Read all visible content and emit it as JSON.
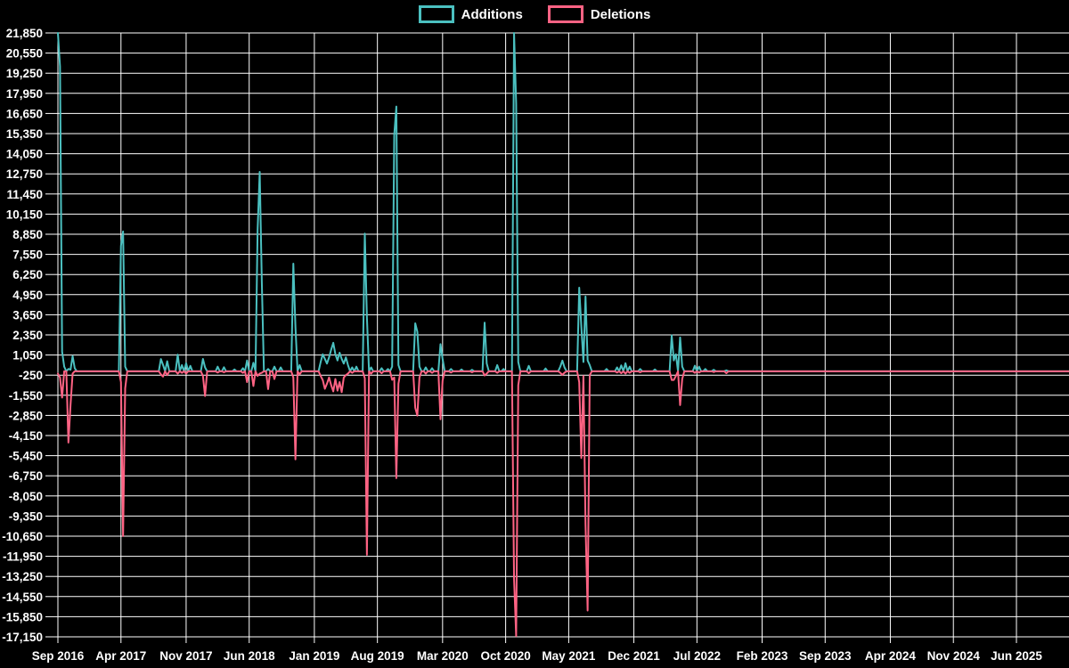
{
  "legend": {
    "items": [
      {
        "label": "Additions",
        "color": "#4BC0C0"
      },
      {
        "label": "Deletions",
        "color": "#FF6384"
      }
    ]
  },
  "chart_data": {
    "type": "line",
    "title": "",
    "xlabel": "",
    "ylabel": "",
    "background_color": "#000000",
    "grid": true,
    "grid_color": "#ffffff",
    "text_color": "#ffffff",
    "legend_position": "top",
    "y_axis": {
      "min": -17150,
      "max": 21850,
      "tick_step": 1300
    },
    "y_tick_labels": [
      "21,850",
      "20,550",
      "19,250",
      "17,950",
      "16,650",
      "15,350",
      "14,050",
      "12,750",
      "11,450",
      "10,150",
      "8,850",
      "7,550",
      "6,250",
      "4,950",
      "3,650",
      "2,350",
      "1,050",
      "-250",
      "-1,550",
      "-2,850",
      "-4,150",
      "-5,450",
      "-6,750",
      "-8,050",
      "-9,350",
      "-10,650",
      "-11,950",
      "-13,250",
      "-14,550",
      "-15,850",
      "-17,150"
    ],
    "x_tick_labels": [
      "Sep 2016",
      "Apr 2017",
      "Nov 2017",
      "Jun 2018",
      "Jan 2019",
      "Aug 2019",
      "Mar 2020",
      "Oct 2020",
      "May 2021",
      "Dec 2021",
      "Jul 2022",
      "Feb 2023",
      "Sep 2023",
      "Apr 2024",
      "Nov 2024",
      "Jun 2025"
    ],
    "x_tick_week_interval": 30.43,
    "weeks_total": 482,
    "series": [
      {
        "name": "Additions",
        "color": "#4BC0C0",
        "default_value": 0,
        "points": [
          {
            "i": 0,
            "v": 21850
          },
          {
            "i": 1,
            "v": 19700
          },
          {
            "i": 2,
            "v": 1265
          },
          {
            "i": 3,
            "v": 300
          },
          {
            "i": 5,
            "v": 150
          },
          {
            "i": 6,
            "v": 100
          },
          {
            "i": 7,
            "v": 980
          },
          {
            "i": 8,
            "v": 200
          },
          {
            "i": 30,
            "v": 8100
          },
          {
            "i": 31,
            "v": 9030
          },
          {
            "i": 32,
            "v": 300
          },
          {
            "i": 49,
            "v": 790
          },
          {
            "i": 50,
            "v": 420
          },
          {
            "i": 52,
            "v": 650
          },
          {
            "i": 57,
            "v": 1075
          },
          {
            "i": 59,
            "v": 400
          },
          {
            "i": 61,
            "v": 520
          },
          {
            "i": 63,
            "v": 350
          },
          {
            "i": 69,
            "v": 800
          },
          {
            "i": 70,
            "v": 250
          },
          {
            "i": 76,
            "v": 300
          },
          {
            "i": 79,
            "v": 260
          },
          {
            "i": 84,
            "v": 120
          },
          {
            "i": 88,
            "v": 200
          },
          {
            "i": 90,
            "v": 700
          },
          {
            "i": 93,
            "v": 550
          },
          {
            "i": 95,
            "v": 9100
          },
          {
            "i": 96,
            "v": 12880
          },
          {
            "i": 97,
            "v": 5800
          },
          {
            "i": 100,
            "v": 150
          },
          {
            "i": 103,
            "v": 300
          },
          {
            "i": 106,
            "v": 250
          },
          {
            "i": 112,
            "v": 6950
          },
          {
            "i": 113,
            "v": 2890
          },
          {
            "i": 115,
            "v": 400
          },
          {
            "i": 125,
            "v": 600
          },
          {
            "i": 126,
            "v": 1100
          },
          {
            "i": 127,
            "v": 800
          },
          {
            "i": 128,
            "v": 500
          },
          {
            "i": 129,
            "v": 900
          },
          {
            "i": 130,
            "v": 1400
          },
          {
            "i": 131,
            "v": 1840
          },
          {
            "i": 132,
            "v": 1100
          },
          {
            "i": 133,
            "v": 700
          },
          {
            "i": 134,
            "v": 1200
          },
          {
            "i": 135,
            "v": 800
          },
          {
            "i": 136,
            "v": 500
          },
          {
            "i": 137,
            "v": 900
          },
          {
            "i": 138,
            "v": 400
          },
          {
            "i": 140,
            "v": 250
          },
          {
            "i": 142,
            "v": 300
          },
          {
            "i": 146,
            "v": 8890
          },
          {
            "i": 147,
            "v": 3500
          },
          {
            "i": 149,
            "v": 250
          },
          {
            "i": 154,
            "v": 200
          },
          {
            "i": 157,
            "v": 150
          },
          {
            "i": 159,
            "v": 300
          },
          {
            "i": 160,
            "v": 15250
          },
          {
            "i": 161,
            "v": 17100
          },
          {
            "i": 162,
            "v": 400
          },
          {
            "i": 170,
            "v": 3100
          },
          {
            "i": 171,
            "v": 2550
          },
          {
            "i": 172,
            "v": 300
          },
          {
            "i": 175,
            "v": 250
          },
          {
            "i": 178,
            "v": 200
          },
          {
            "i": 182,
            "v": 1750
          },
          {
            "i": 183,
            "v": 800
          },
          {
            "i": 187,
            "v": 150
          },
          {
            "i": 192,
            "v": 120
          },
          {
            "i": 197,
            "v": 100
          },
          {
            "i": 203,
            "v": 3140
          },
          {
            "i": 204,
            "v": 500
          },
          {
            "i": 209,
            "v": 400
          },
          {
            "i": 212,
            "v": 150
          },
          {
            "i": 217,
            "v": 21850
          },
          {
            "i": 218,
            "v": 17300
          },
          {
            "i": 219,
            "v": 600
          },
          {
            "i": 224,
            "v": 350
          },
          {
            "i": 232,
            "v": 180
          },
          {
            "i": 239,
            "v": 300
          },
          {
            "i": 240,
            "v": 690
          },
          {
            "i": 241,
            "v": 250
          },
          {
            "i": 248,
            "v": 5400
          },
          {
            "i": 249,
            "v": 2890
          },
          {
            "i": 250,
            "v": 600
          },
          {
            "i": 251,
            "v": 4830
          },
          {
            "i": 252,
            "v": 700
          },
          {
            "i": 253,
            "v": 400
          },
          {
            "i": 261,
            "v": 150
          },
          {
            "i": 266,
            "v": 250
          },
          {
            "i": 268,
            "v": 380
          },
          {
            "i": 270,
            "v": 520
          },
          {
            "i": 272,
            "v": 300
          },
          {
            "i": 277,
            "v": 150
          },
          {
            "i": 284,
            "v": 120
          },
          {
            "i": 292,
            "v": 2320
          },
          {
            "i": 293,
            "v": 700
          },
          {
            "i": 294,
            "v": 1100
          },
          {
            "i": 296,
            "v": 2185
          },
          {
            "i": 297,
            "v": 300
          },
          {
            "i": 303,
            "v": 360
          },
          {
            "i": 305,
            "v": 300
          },
          {
            "i": 308,
            "v": 150
          },
          {
            "i": 312,
            "v": 100
          },
          {
            "i": 318,
            "v": 60
          }
        ]
      },
      {
        "name": "Deletions",
        "color": "#FF6384",
        "default_value": 0,
        "points": [
          {
            "i": 0,
            "v": -150
          },
          {
            "i": 1,
            "v": -400
          },
          {
            "i": 2,
            "v": -1700
          },
          {
            "i": 5,
            "v": -4600
          },
          {
            "i": 6,
            "v": -2185
          },
          {
            "i": 7,
            "v": -150
          },
          {
            "i": 30,
            "v": -700
          },
          {
            "i": 31,
            "v": -10640
          },
          {
            "i": 32,
            "v": -1100
          },
          {
            "i": 49,
            "v": -200
          },
          {
            "i": 50,
            "v": -345
          },
          {
            "i": 52,
            "v": -250
          },
          {
            "i": 57,
            "v": -150
          },
          {
            "i": 59,
            "v": -100
          },
          {
            "i": 61,
            "v": -150
          },
          {
            "i": 69,
            "v": -300
          },
          {
            "i": 70,
            "v": -1600
          },
          {
            "i": 76,
            "v": -80
          },
          {
            "i": 79,
            "v": -60
          },
          {
            "i": 88,
            "v": -100
          },
          {
            "i": 90,
            "v": -700
          },
          {
            "i": 93,
            "v": -950
          },
          {
            "i": 95,
            "v": -300
          },
          {
            "i": 96,
            "v": -150
          },
          {
            "i": 97,
            "v": -100
          },
          {
            "i": 100,
            "v": -1150
          },
          {
            "i": 103,
            "v": -500
          },
          {
            "i": 112,
            "v": -400
          },
          {
            "i": 113,
            "v": -5690
          },
          {
            "i": 115,
            "v": -200
          },
          {
            "i": 125,
            "v": -300
          },
          {
            "i": 126,
            "v": -570
          },
          {
            "i": 127,
            "v": -1130
          },
          {
            "i": 128,
            "v": -800
          },
          {
            "i": 129,
            "v": -400
          },
          {
            "i": 130,
            "v": -900
          },
          {
            "i": 131,
            "v": -1300
          },
          {
            "i": 132,
            "v": -500
          },
          {
            "i": 133,
            "v": -1250
          },
          {
            "i": 134,
            "v": -700
          },
          {
            "i": 135,
            "v": -1350
          },
          {
            "i": 136,
            "v": -400
          },
          {
            "i": 137,
            "v": -250
          },
          {
            "i": 138,
            "v": -150
          },
          {
            "i": 140,
            "v": -100
          },
          {
            "i": 146,
            "v": -450
          },
          {
            "i": 147,
            "v": -11850
          },
          {
            "i": 149,
            "v": -150
          },
          {
            "i": 154,
            "v": -120
          },
          {
            "i": 159,
            "v": -550
          },
          {
            "i": 160,
            "v": -400
          },
          {
            "i": 161,
            "v": -6900
          },
          {
            "i": 162,
            "v": -800
          },
          {
            "i": 170,
            "v": -2350
          },
          {
            "i": 171,
            "v": -2860
          },
          {
            "i": 172,
            "v": -400
          },
          {
            "i": 175,
            "v": -150
          },
          {
            "i": 178,
            "v": -100
          },
          {
            "i": 182,
            "v": -3100
          },
          {
            "i": 183,
            "v": -600
          },
          {
            "i": 187,
            "v": -80
          },
          {
            "i": 197,
            "v": -60
          },
          {
            "i": 203,
            "v": -270
          },
          {
            "i": 204,
            "v": -150
          },
          {
            "i": 209,
            "v": -100
          },
          {
            "i": 217,
            "v": -13400
          },
          {
            "i": 218,
            "v": -17100
          },
          {
            "i": 219,
            "v": -900
          },
          {
            "i": 224,
            "v": -120
          },
          {
            "i": 239,
            "v": -100
          },
          {
            "i": 240,
            "v": -230
          },
          {
            "i": 241,
            "v": -90
          },
          {
            "i": 248,
            "v": -700
          },
          {
            "i": 249,
            "v": -5600
          },
          {
            "i": 250,
            "v": -300
          },
          {
            "i": 251,
            "v": -9890
          },
          {
            "i": 252,
            "v": -15450
          },
          {
            "i": 253,
            "v": -250
          },
          {
            "i": 266,
            "v": -80
          },
          {
            "i": 268,
            "v": -120
          },
          {
            "i": 270,
            "v": -150
          },
          {
            "i": 272,
            "v": -100
          },
          {
            "i": 277,
            "v": -60
          },
          {
            "i": 292,
            "v": -560
          },
          {
            "i": 293,
            "v": -560
          },
          {
            "i": 294,
            "v": -300
          },
          {
            "i": 296,
            "v": -2185
          },
          {
            "i": 297,
            "v": -500
          },
          {
            "i": 303,
            "v": -100
          },
          {
            "i": 305,
            "v": -80
          },
          {
            "i": 312,
            "v": -50
          },
          {
            "i": 318,
            "v": -120
          }
        ]
      }
    ]
  }
}
